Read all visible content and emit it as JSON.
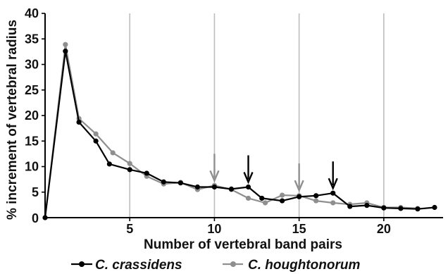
{
  "chart_data": {
    "type": "line",
    "xlabel": "Number of vertebral band pairs",
    "ylabel": "% increment of vertebral radius",
    "xlim": [
      0,
      23.5
    ],
    "ylim": [
      0,
      40
    ],
    "x_ticks": [
      5,
      10,
      15,
      20
    ],
    "x_tick_labels": [
      "5",
      "10",
      "15",
      "20"
    ],
    "y_ticks": [
      5,
      10,
      15,
      20,
      25,
      30,
      35,
      40
    ],
    "y_tick_labels": [
      "5",
      "10",
      "15",
      "20",
      "25",
      "30",
      "35",
      "40"
    ],
    "origin_label": "0",
    "grid": "vertical",
    "legend_position": "bottom",
    "series": [
      {
        "name": "C. crassidens",
        "color": "#000000",
        "x": [
          0,
          1.2,
          2,
          3,
          3.8,
          5,
          6,
          7,
          8,
          9,
          10,
          11,
          12,
          12.8,
          14,
          15,
          16,
          17,
          18,
          19,
          20,
          21,
          22,
          23
        ],
        "y": [
          0,
          32.6,
          18.7,
          15,
          10.5,
          9.4,
          8.7,
          7.0,
          6.8,
          6.0,
          6.0,
          5.6,
          6.0,
          3.8,
          3.3,
          4.1,
          4.3,
          4.8,
          2.2,
          2.4,
          1.9,
          1.8,
          1.7,
          2.0
        ]
      },
      {
        "name": "C. houghtonorum",
        "color": "#8f8f8f",
        "x": [
          0,
          1.2,
          2,
          3,
          4,
          5,
          6,
          7,
          8,
          9,
          10,
          11,
          12,
          13,
          14,
          15,
          16,
          17,
          18,
          19,
          20,
          21,
          22
        ],
        "y": [
          0,
          33.9,
          19.4,
          16.4,
          12.7,
          10.6,
          8.1,
          6.6,
          6.9,
          5.5,
          6.3,
          5.5,
          3.8,
          2.9,
          4.4,
          4.3,
          3.3,
          2.9,
          2.6,
          2.9,
          2.0,
          2.0,
          1.8
        ]
      }
    ],
    "annotations": [
      {
        "type": "arrow",
        "x": 10,
        "y": 6.3,
        "color": "#8f8f8f"
      },
      {
        "type": "arrow",
        "x": 12,
        "y": 6.0,
        "color": "#000000"
      },
      {
        "type": "arrow",
        "x": 15,
        "y": 4.4,
        "color": "#8f8f8f"
      },
      {
        "type": "arrow",
        "x": 17,
        "y": 4.8,
        "color": "#000000"
      }
    ],
    "colors": {
      "axis": "#000000",
      "grid": "#bdbdbd",
      "crassidens": "#000000",
      "houghtonorum": "#8f8f8f"
    }
  }
}
